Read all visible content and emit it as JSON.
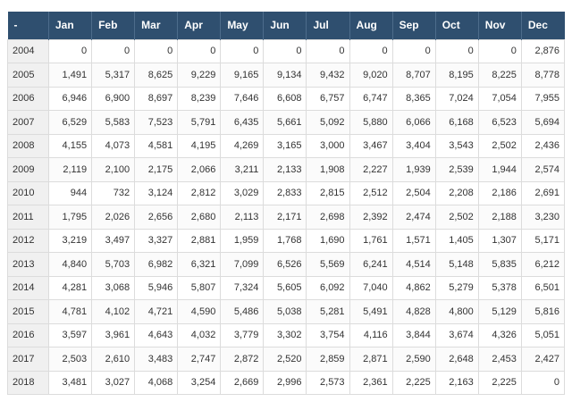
{
  "table": {
    "columns": [
      "-",
      "Jan",
      "Feb",
      "Mar",
      "Apr",
      "May",
      "Jun",
      "Jul",
      "Aug",
      "Sep",
      "Oct",
      "Nov",
      "Dec"
    ],
    "rows": [
      [
        "2004",
        "0",
        "0",
        "0",
        "0",
        "0",
        "0",
        "0",
        "0",
        "0",
        "0",
        "0",
        "2,876"
      ],
      [
        "2005",
        "1,491",
        "5,317",
        "8,625",
        "9,229",
        "9,165",
        "9,134",
        "9,432",
        "9,020",
        "8,707",
        "8,195",
        "8,225",
        "8,778"
      ],
      [
        "2006",
        "6,946",
        "6,900",
        "8,697",
        "8,239",
        "7,646",
        "6,608",
        "6,757",
        "6,747",
        "8,365",
        "7,024",
        "7,054",
        "7,955"
      ],
      [
        "2007",
        "6,529",
        "5,583",
        "7,523",
        "5,791",
        "6,435",
        "5,661",
        "5,092",
        "5,880",
        "6,066",
        "6,168",
        "6,523",
        "5,694"
      ],
      [
        "2008",
        "4,155",
        "4,073",
        "4,581",
        "4,195",
        "4,269",
        "3,165",
        "3,000",
        "3,467",
        "3,404",
        "3,543",
        "2,502",
        "2,436"
      ],
      [
        "2009",
        "2,119",
        "2,100",
        "2,175",
        "2,066",
        "3,211",
        "2,133",
        "1,908",
        "2,227",
        "1,939",
        "2,539",
        "1,944",
        "2,574"
      ],
      [
        "2010",
        "944",
        "732",
        "3,124",
        "2,812",
        "3,029",
        "2,833",
        "2,815",
        "2,512",
        "2,504",
        "2,208",
        "2,186",
        "2,691"
      ],
      [
        "2011",
        "1,795",
        "2,026",
        "2,656",
        "2,680",
        "2,113",
        "2,171",
        "2,698",
        "2,392",
        "2,474",
        "2,502",
        "2,188",
        "3,230"
      ],
      [
        "2012",
        "3,219",
        "3,497",
        "3,327",
        "2,881",
        "1,959",
        "1,768",
        "1,690",
        "1,761",
        "1,571",
        "1,405",
        "1,307",
        "5,171"
      ],
      [
        "2013",
        "4,840",
        "5,703",
        "6,982",
        "6,321",
        "7,099",
        "6,526",
        "5,569",
        "6,241",
        "4,514",
        "5,148",
        "5,835",
        "6,212"
      ],
      [
        "2014",
        "4,281",
        "3,068",
        "5,946",
        "5,807",
        "7,324",
        "5,605",
        "6,092",
        "7,040",
        "4,862",
        "5,279",
        "5,378",
        "6,501"
      ],
      [
        "2015",
        "4,781",
        "4,102",
        "4,721",
        "4,590",
        "5,486",
        "5,038",
        "5,281",
        "5,491",
        "4,828",
        "4,800",
        "5,129",
        "5,816"
      ],
      [
        "2016",
        "3,597",
        "3,961",
        "4,643",
        "4,032",
        "3,779",
        "3,302",
        "3,754",
        "4,116",
        "3,844",
        "3,674",
        "4,326",
        "5,051"
      ],
      [
        "2017",
        "2,503",
        "2,610",
        "3,483",
        "2,747",
        "2,872",
        "2,520",
        "2,859",
        "2,871",
        "2,590",
        "2,648",
        "2,453",
        "2,427"
      ],
      [
        "2018",
        "3,481",
        "3,027",
        "4,068",
        "3,254",
        "2,669",
        "2,996",
        "2,573",
        "2,361",
        "2,225",
        "2,163",
        "2,225",
        "0"
      ]
    ]
  },
  "colors": {
    "header_bg": "#2f4f6f",
    "header_text": "#ffffff",
    "year_cell_bg": "#f0f0f0",
    "border": "#dcdcdc"
  }
}
